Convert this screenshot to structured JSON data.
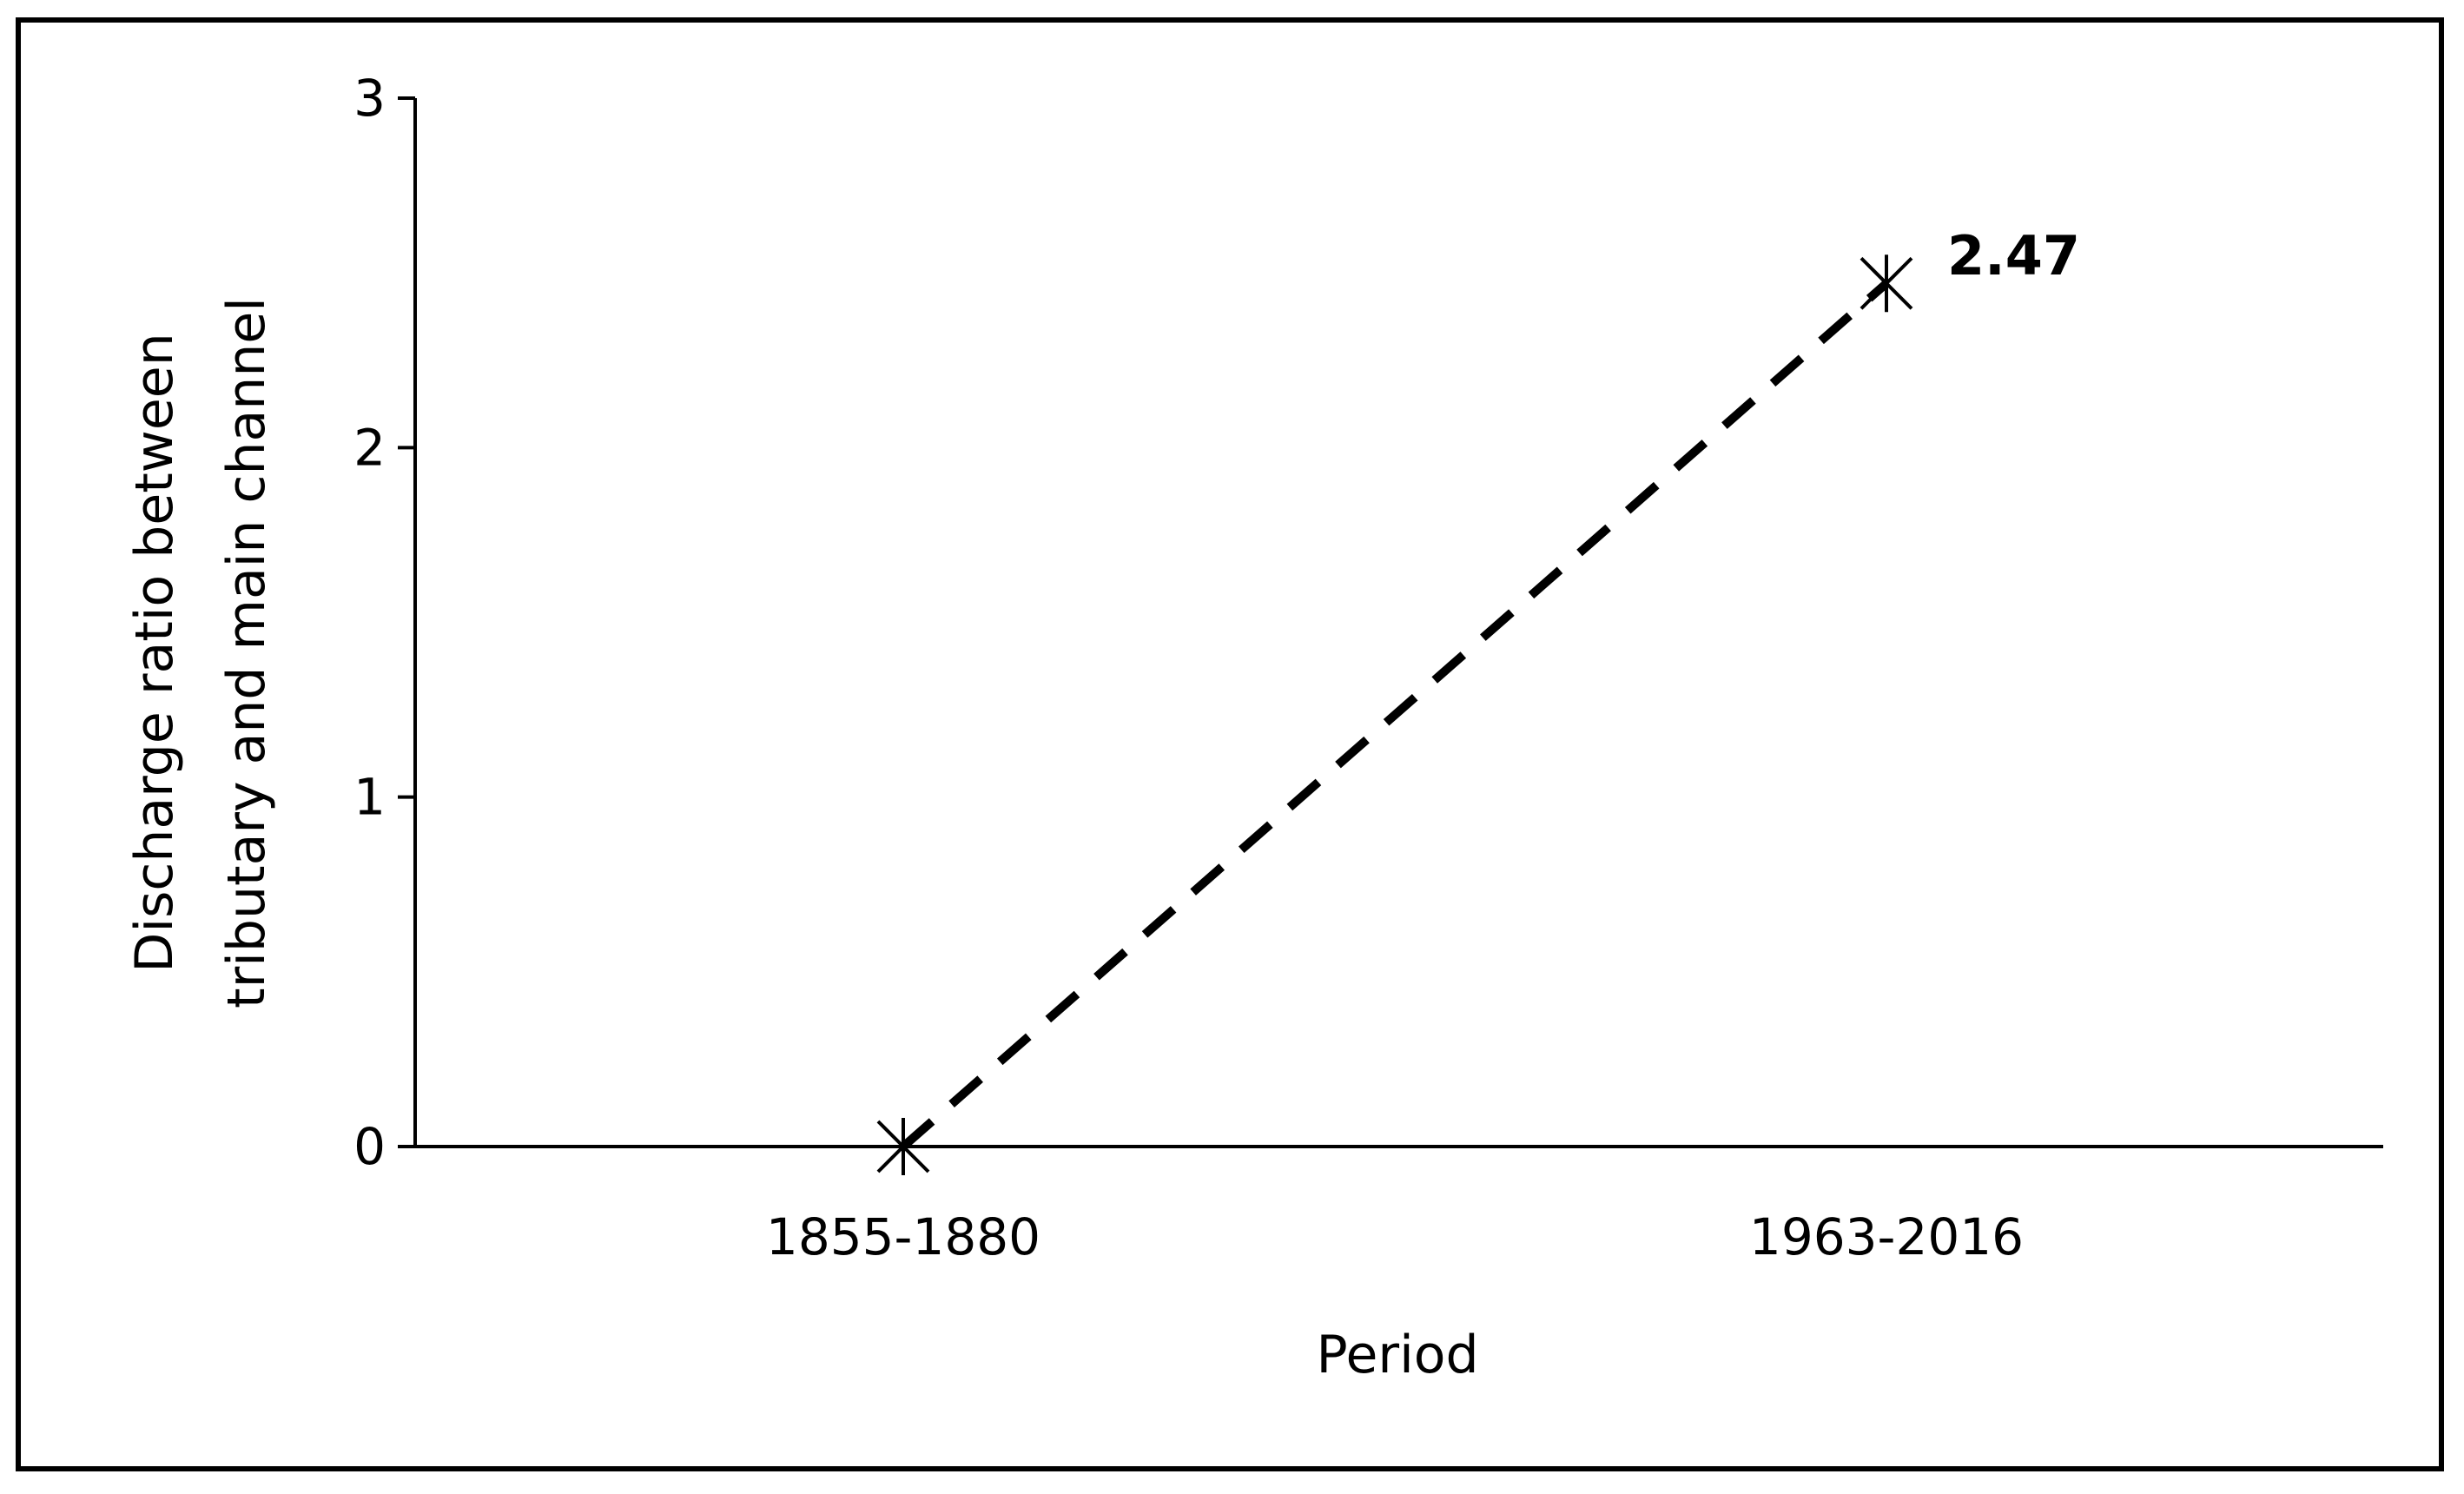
{
  "chart_data": {
    "type": "line",
    "categories": [
      "1855-1880",
      "1963-2016"
    ],
    "series": [
      {
        "values": [
          0,
          2.47
        ],
        "line_style": "dashed",
        "marker": "asterisk",
        "color": "#000000"
      }
    ],
    "data_labels": [
      "",
      "2.47"
    ],
    "title": "",
    "xlabel": "Period",
    "ylabel_lines": [
      "Discharge ratio between",
      "tributary and main channel"
    ],
    "ylim": [
      0,
      3
    ],
    "yticks": [
      0,
      1,
      2,
      3
    ],
    "ytick_labels": [
      "0",
      "1",
      "2",
      "3"
    ],
    "grid": false,
    "legend": "none"
  }
}
